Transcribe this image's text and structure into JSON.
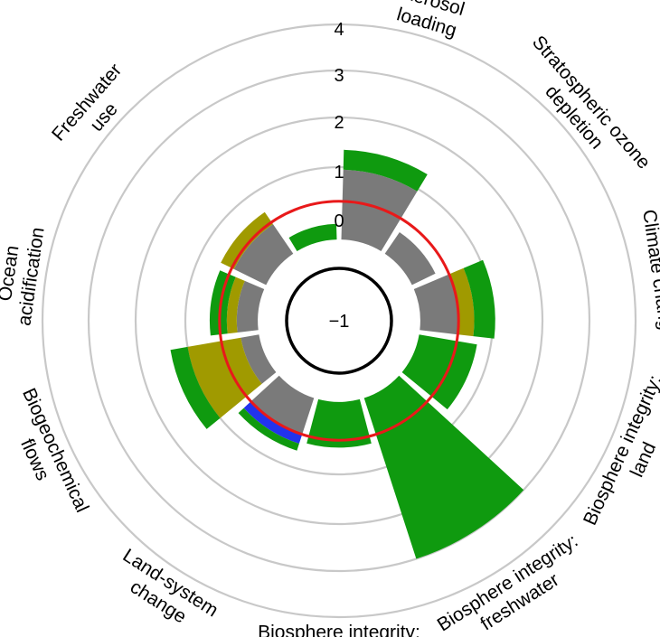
{
  "chart_data": {
    "type": "polar-bar",
    "title": "",
    "scale": {
      "tick_labels": [
        "−1",
        "0",
        "1",
        "2",
        "3",
        "4"
      ],
      "ticks": [
        -1,
        0,
        1,
        2,
        3,
        4
      ],
      "rmin": -1,
      "rmax": 4
    },
    "boundary_ring": {
      "value": 0.3,
      "color": "#e8191a"
    },
    "colors": {
      "green": "#0f9a0f",
      "olive": "#a09a00",
      "gray": "#7a7a7a",
      "blue": "#2233ee",
      "grid": "#c8c8c8"
    },
    "segments": [
      {
        "label": "Aerosol\nloading",
        "value": 1.35,
        "bands": [
          {
            "from": -0.45,
            "to": 0.95,
            "color": "gray"
          },
          {
            "from": 0.95,
            "to": 1.35,
            "color": "green"
          }
        ]
      },
      {
        "label": "Stratospheric ozone\ndepletion",
        "value": 0.05,
        "bands": [
          {
            "from": -0.45,
            "to": 0.05,
            "color": "gray"
          }
        ]
      },
      {
        "label": "Climate change",
        "value": 1.05,
        "bands": [
          {
            "from": -0.45,
            "to": 0.3,
            "color": "gray"
          },
          {
            "from": 0.3,
            "to": 0.62,
            "color": "olive"
          },
          {
            "from": 0.62,
            "to": 1.05,
            "color": "green"
          }
        ]
      },
      {
        "label": "Biosphere integrity:\nland",
        "value": 0.72,
        "bands": [
          {
            "from": -0.45,
            "to": 0.72,
            "color": "green"
          }
        ]
      },
      {
        "label": "Biosphere integrity:\nfreshwater",
        "value": 3.0,
        "bands": [
          {
            "from": -0.45,
            "to": 3.0,
            "color": "green"
          }
        ]
      },
      {
        "label": "Biosphere integrity:\nocean",
        "value": 0.45,
        "bands": [
          {
            "from": -0.45,
            "to": 0.45,
            "color": "green"
          }
        ]
      },
      {
        "label": "Land-system\nchange",
        "value": 0.65,
        "bands": [
          {
            "from": -0.45,
            "to": 0.3,
            "color": "gray"
          },
          {
            "from": 0.3,
            "to": 0.5,
            "color": "blue"
          },
          {
            "from": 0.5,
            "to": 0.65,
            "color": "green"
          }
        ]
      },
      {
        "label": "Biogeochemical\nflows",
        "value": 1.35,
        "bands": [
          {
            "from": -0.45,
            "to": -0.1,
            "color": "gray"
          },
          {
            "from": -0.1,
            "to": 1.0,
            "color": "olive"
          },
          {
            "from": 1.0,
            "to": 1.35,
            "color": "green"
          }
        ]
      },
      {
        "label": "Ocean\nacidification",
        "value": 0.5,
        "bands": [
          {
            "from": -0.45,
            "to": -0.05,
            "color": "gray"
          },
          {
            "from": -0.05,
            "to": 0.15,
            "color": "olive"
          },
          {
            "from": 0.15,
            "to": 0.5,
            "color": "green"
          }
        ]
      },
      {
        "label": "Freshwater\nuse",
        "value": 0.55,
        "bands": [
          {
            "from": -0.45,
            "to": 0.25,
            "color": "gray"
          },
          {
            "from": 0.25,
            "to": 0.55,
            "color": "olive"
          }
        ]
      },
      {
        "label": "",
        "value": -0.15,
        "bands": [
          {
            "from": -0.45,
            "to": -0.15,
            "color": "green"
          }
        ]
      }
    ]
  }
}
